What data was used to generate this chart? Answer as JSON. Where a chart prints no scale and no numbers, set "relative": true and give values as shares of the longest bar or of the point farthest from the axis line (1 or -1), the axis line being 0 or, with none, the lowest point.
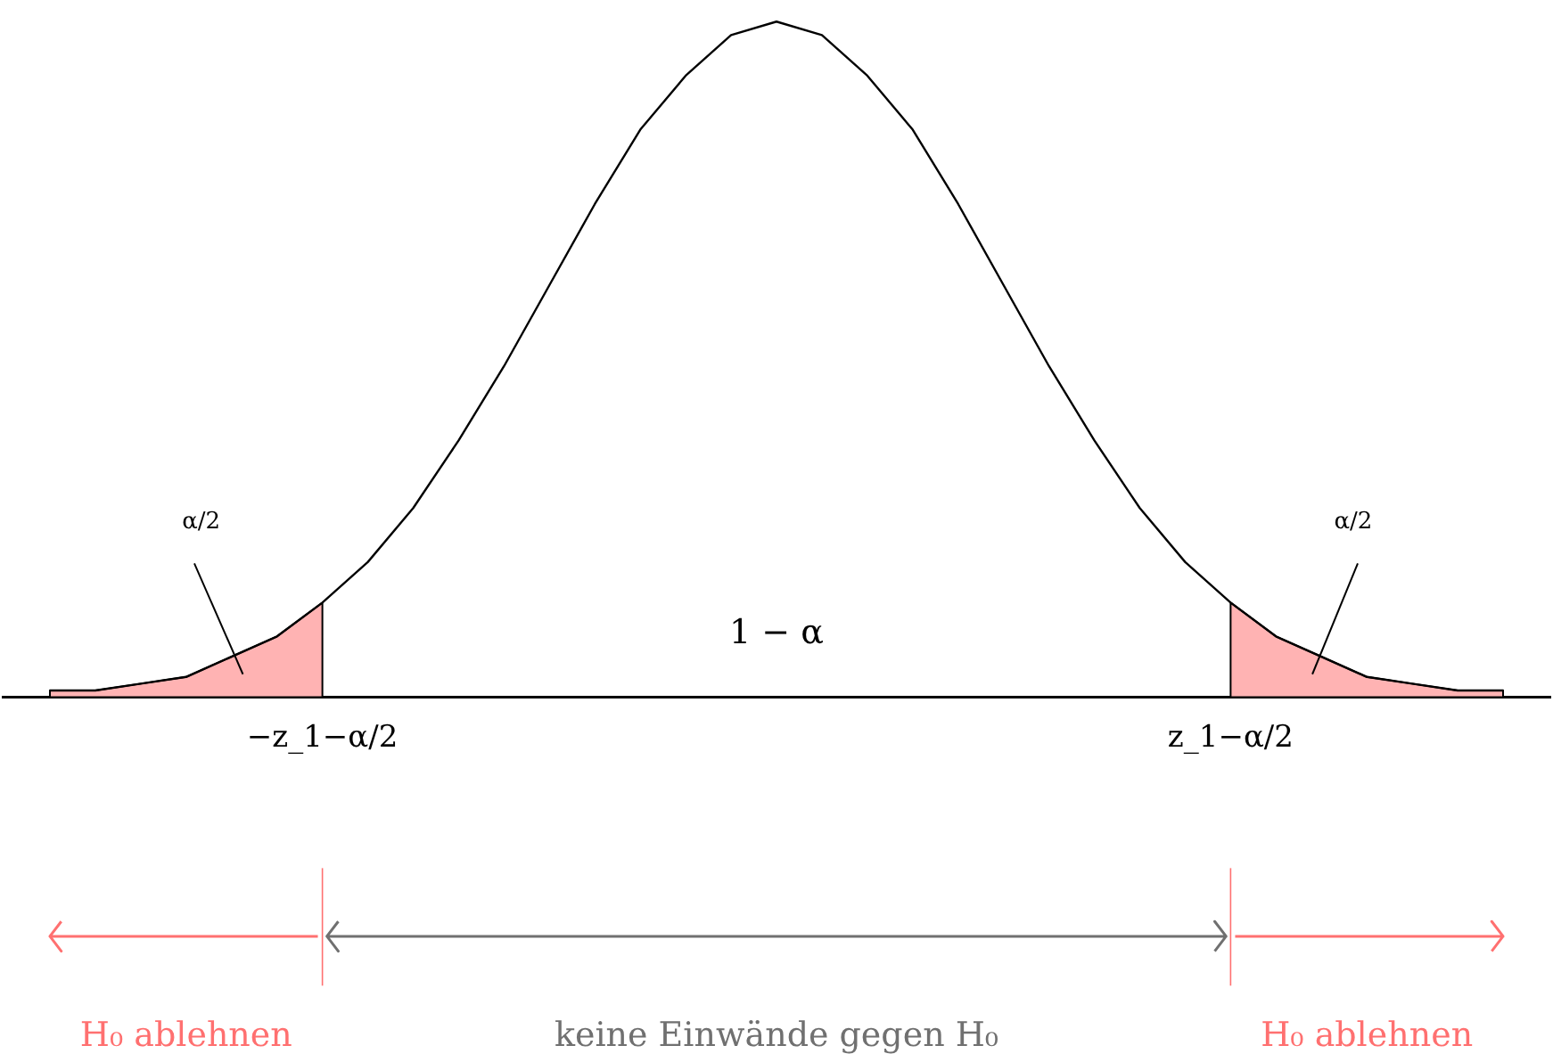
{
  "chart_data": {
    "type": "line",
    "relative": true,
    "categories": [
      null,
      null,
      null,
      null,
      null,
      null,
      null,
      null,
      null,
      null,
      null,
      null,
      null,
      null,
      null,
      null,
      null,
      null,
      null,
      null,
      null,
      null,
      null,
      null,
      null,
      null,
      null,
      null,
      null,
      null,
      null,
      null,
      null
    ],
    "series": [
      {
        "type": "area",
        "color": "#ffb3b3",
        "values": [
          0.01,
          0.01,
          0.02,
          0.03,
          0.06,
          0.09,
          0.14,
          null,
          null,
          null,
          null,
          null,
          null,
          null,
          null,
          null,
          null,
          null,
          null,
          null,
          null,
          null,
          null,
          null,
          null,
          null,
          0.14,
          0.09,
          0.06,
          0.03,
          0.02,
          0.01,
          0.01
        ]
      },
      {
        "color": "#000000",
        "values": [
          0.01,
          0.01,
          0.02,
          0.03,
          0.06,
          0.09,
          0.14,
          0.2,
          0.28,
          0.38,
          0.49,
          0.61,
          0.73,
          0.84,
          0.92,
          0.98,
          1.0,
          0.98,
          0.92,
          0.84,
          0.73,
          0.61,
          0.49,
          0.38,
          0.28,
          0.2,
          0.14,
          0.09,
          0.06,
          0.03,
          0.02,
          0.01,
          0.01
        ]
      }
    ],
    "annotations": [
      "α/2",
      "α/2",
      "1 − α",
      "−z_1−α/2",
      "z_1−α/2",
      "H₀ ablehnen",
      "keine Einwände gegen H₀",
      "H₀ ablehnen"
    ],
    "grid": false,
    "tick_labels": false
  }
}
